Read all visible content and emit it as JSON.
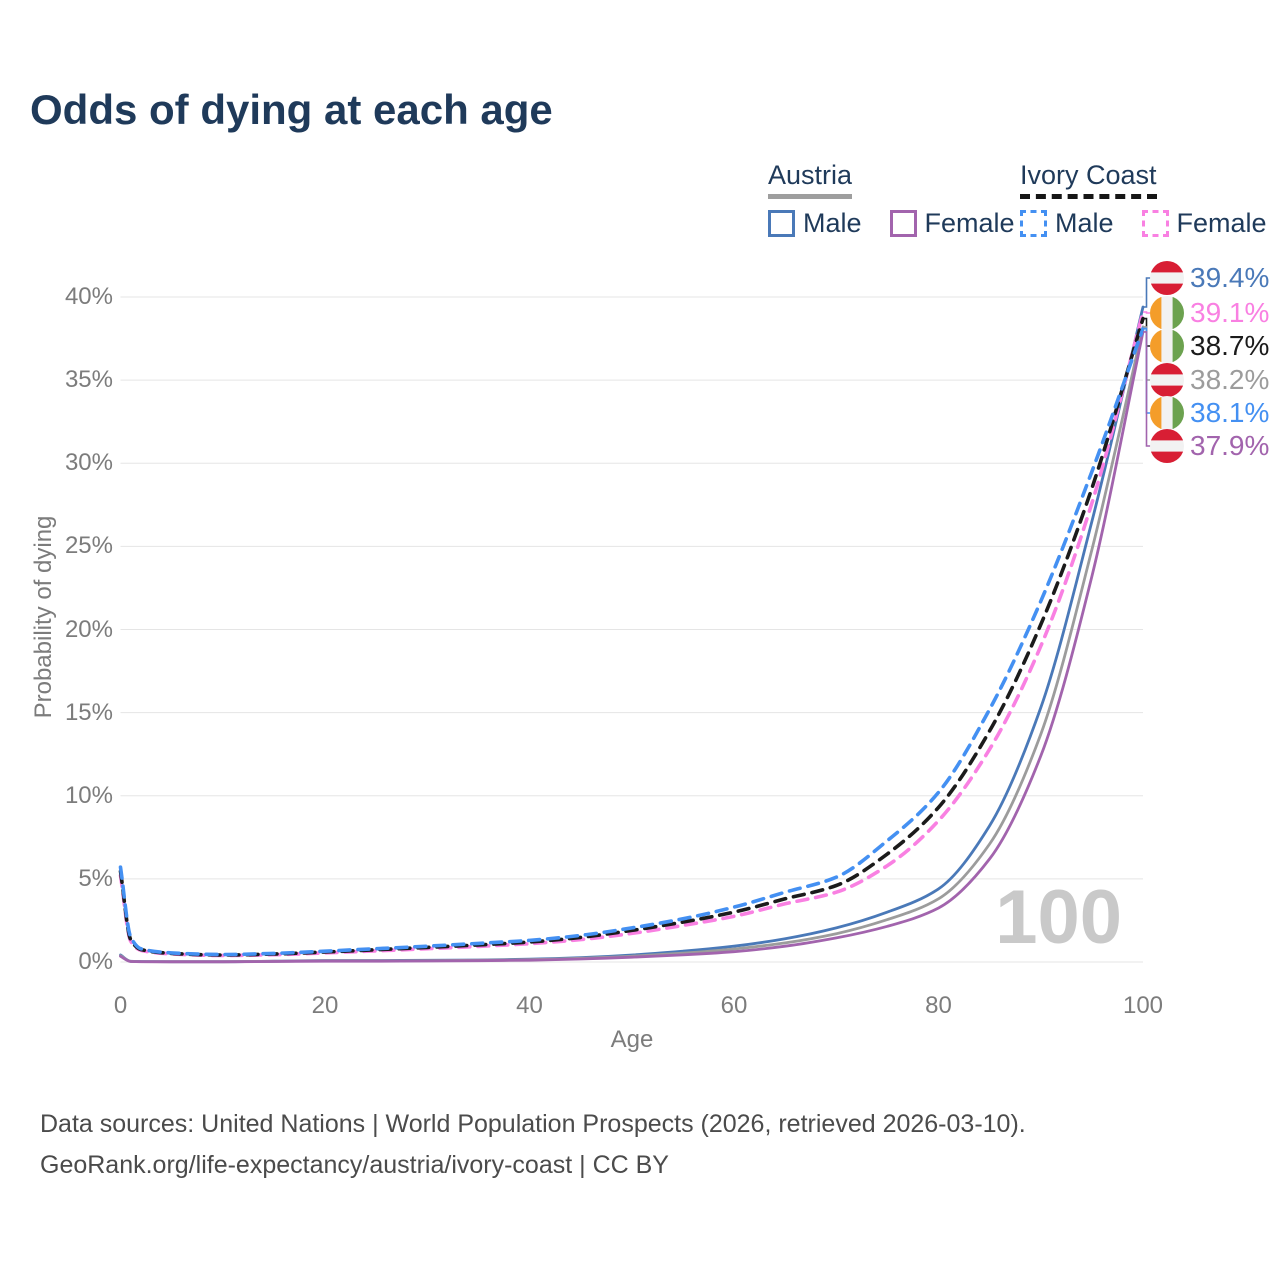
{
  "title": "Odds of dying at each age",
  "watermark": "100",
  "legend": {
    "groups": [
      {
        "label": "Austria",
        "line_style": "solid",
        "underline_color": "#9e9e9e",
        "items": [
          {
            "label": "Male",
            "color": "#4a79b8"
          },
          {
            "label": "Female",
            "color": "#a264ad"
          }
        ]
      },
      {
        "label": "Ivory Coast",
        "line_style": "dashed",
        "underline_color": "#161616",
        "items": [
          {
            "label": "Male",
            "color": "#4490f2"
          },
          {
            "label": "Female",
            "color": "#f980e2"
          }
        ]
      }
    ]
  },
  "chart_data": {
    "type": "line",
    "title": "Odds of dying at each age",
    "xlabel": "Age",
    "ylabel": "Probability of dying",
    "xlim": [
      0,
      100
    ],
    "ylim": [
      0,
      40
    ],
    "x_ticks": [
      0,
      20,
      40,
      60,
      80,
      100
    ],
    "y_ticks": [
      0,
      5,
      10,
      15,
      20,
      25,
      30,
      35,
      40
    ],
    "y_tick_suffix": "%",
    "grid": "horizontal-only",
    "x": [
      0,
      1,
      2,
      5,
      10,
      15,
      20,
      25,
      30,
      35,
      40,
      45,
      50,
      55,
      60,
      65,
      70,
      75,
      80,
      85,
      90,
      95,
      100
    ],
    "series": [
      {
        "name": "Austria Male",
        "country": "Austria",
        "sex": "male",
        "color": "#4a79b8",
        "dashed": false,
        "values": [
          0.42,
          0.04,
          0.03,
          0.02,
          0.02,
          0.05,
          0.09,
          0.09,
          0.1,
          0.12,
          0.17,
          0.26,
          0.42,
          0.65,
          0.95,
          1.4,
          2.05,
          3.0,
          4.4,
          8.2,
          15.3,
          26.5,
          39.4
        ]
      },
      {
        "name": "Austria Both sexes",
        "country": "Austria",
        "sex": "both",
        "color": "#9c9c9c",
        "dashed": false,
        "values": [
          0.38,
          0.035,
          0.025,
          0.018,
          0.018,
          0.04,
          0.07,
          0.07,
          0.08,
          0.1,
          0.14,
          0.22,
          0.35,
          0.53,
          0.78,
          1.15,
          1.7,
          2.55,
          3.8,
          7.1,
          13.7,
          24.8,
          38.2
        ]
      },
      {
        "name": "Austria Female",
        "country": "Austria",
        "sex": "female",
        "color": "#a264ad",
        "dashed": false,
        "values": [
          0.34,
          0.03,
          0.02,
          0.015,
          0.015,
          0.03,
          0.05,
          0.05,
          0.06,
          0.08,
          0.11,
          0.18,
          0.29,
          0.43,
          0.62,
          0.95,
          1.45,
          2.15,
          3.25,
          6.2,
          12.4,
          23.2,
          37.9
        ]
      },
      {
        "name": "Ivory Coast Female",
        "country": "Ivory Coast",
        "sex": "female",
        "color": "#f980e2",
        "dashed": true,
        "values": [
          5.2,
          1.25,
          0.7,
          0.49,
          0.39,
          0.44,
          0.55,
          0.67,
          0.8,
          0.94,
          1.1,
          1.35,
          1.72,
          2.2,
          2.75,
          3.5,
          4.2,
          5.8,
          8.5,
          12.8,
          19.0,
          27.6,
          39.1
        ]
      },
      {
        "name": "Ivory Coast Both sexes",
        "country": "Ivory Coast",
        "sex": "both",
        "color": "#1b1b1b",
        "dashed": true,
        "values": [
          5.45,
          1.35,
          0.75,
          0.52,
          0.42,
          0.48,
          0.6,
          0.74,
          0.88,
          1.03,
          1.2,
          1.48,
          1.9,
          2.4,
          3.0,
          3.8,
          4.6,
          6.5,
          9.3,
          13.9,
          20.3,
          28.5,
          38.7
        ]
      },
      {
        "name": "Ivory Coast Male",
        "country": "Ivory Coast",
        "sex": "male",
        "color": "#4490f2",
        "dashed": true,
        "values": [
          5.7,
          1.5,
          0.8,
          0.55,
          0.45,
          0.52,
          0.65,
          0.8,
          0.95,
          1.12,
          1.3,
          1.6,
          2.05,
          2.6,
          3.3,
          4.2,
          5.1,
          7.3,
          10.2,
          15.2,
          21.7,
          29.5,
          38.1
        ]
      }
    ],
    "end_labels": [
      {
        "value": "39.4%",
        "flag": "austria",
        "color": "#4a79b8",
        "series": "Austria Male"
      },
      {
        "value": "39.1%",
        "flag": "ivory_coast",
        "color": "#f980e2",
        "series": "Ivory Coast Female"
      },
      {
        "value": "38.7%",
        "flag": "ivory_coast",
        "color": "#1b1b1b",
        "series": "Ivory Coast Both sexes"
      },
      {
        "value": "38.2%",
        "flag": "austria",
        "color": "#9c9c9c",
        "series": "Austria Both sexes"
      },
      {
        "value": "38.1%",
        "flag": "ivory_coast",
        "color": "#4490f2",
        "series": "Ivory Coast Male"
      },
      {
        "value": "37.9%",
        "flag": "austria",
        "color": "#a264ad",
        "series": "Austria Female"
      }
    ],
    "legend_position": "top-right",
    "watermark_color": "#c9c9c9",
    "gridline_color": "#e5e5e5"
  },
  "flags": {
    "austria": {
      "red": "#d81e34",
      "white": "#f2f2f2"
    },
    "ivory_coast": {
      "orange": "#f49d2a",
      "white": "#f2f2f2",
      "green": "#6ca24f"
    }
  },
  "footer": {
    "line1": "Data sources: United Nations | World Population Prospects (2026, retrieved 2026-03-10).",
    "line2": "GeoRank.org/life-expectancy/austria/ivory-coast | CC BY"
  }
}
